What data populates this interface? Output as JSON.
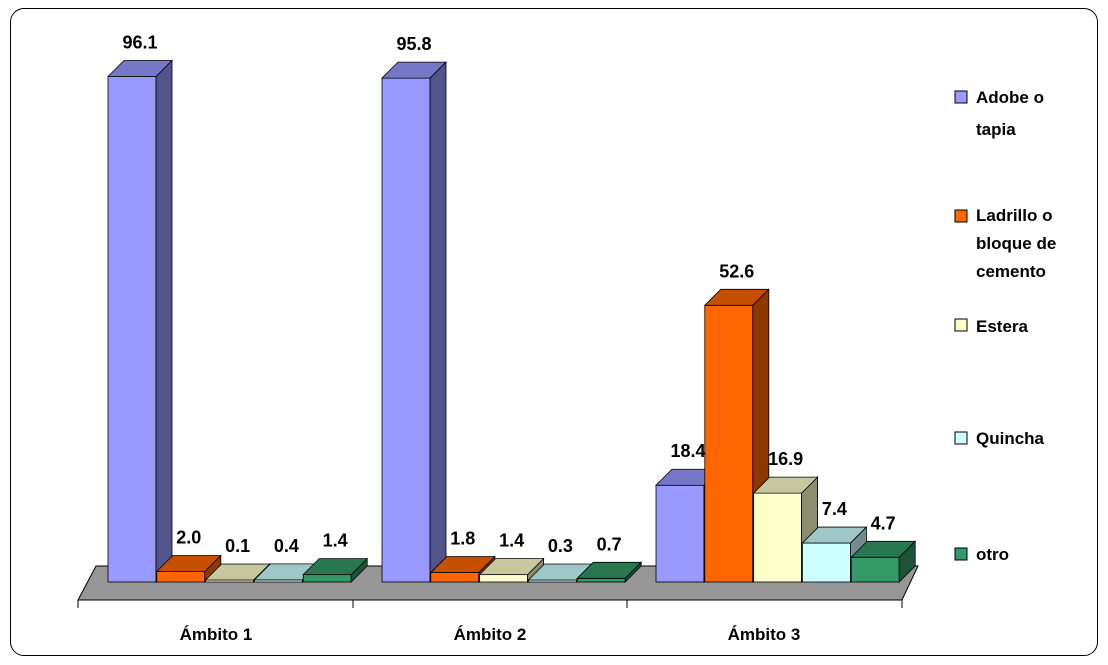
{
  "chart_data": {
    "type": "bar",
    "title": "",
    "xlabel": "",
    "ylabel": "",
    "ylim": [
      0,
      100
    ],
    "categories": [
      "Ámbito 1",
      "Ámbito 2",
      "Ámbito 3"
    ],
    "series": [
      {
        "name": "Adobe o tapia",
        "legend_lines": [
          "Adobe o",
          "tapia"
        ],
        "color": "#9999FF",
        "values": [
          96.1,
          95.8,
          18.4
        ]
      },
      {
        "name": "Ladrillo o bloque de cemento",
        "legend_lines": [
          "Ladrillo o",
          "bloque de",
          "cemento"
        ],
        "color": "#FF6600",
        "values": [
          2.0,
          1.8,
          52.6
        ]
      },
      {
        "name": "Estera",
        "legend_lines": [
          "Estera"
        ],
        "color": "#FFFFCC",
        "values": [
          0.1,
          1.4,
          16.9
        ]
      },
      {
        "name": "Quincha",
        "legend_lines": [
          "Quincha"
        ],
        "color": "#CCFFFF",
        "values": [
          0.4,
          0.3,
          7.4
        ]
      },
      {
        "name": "otro",
        "legend_lines": [
          "otro"
        ],
        "color": "#339966",
        "values": [
          1.4,
          0.7,
          4.7
        ]
      }
    ],
    "value_labels": [
      [
        "96.1",
        "2.0",
        "0.1",
        "0.4",
        "1.4"
      ],
      [
        "95.8",
        "1.8",
        "1.4",
        "0.3",
        "0.7"
      ],
      [
        "18.4",
        "52.6",
        "16.9",
        "7.4",
        "4.7"
      ]
    ],
    "floor_color": "#969696",
    "legend_position": "right",
    "grid": false
  }
}
